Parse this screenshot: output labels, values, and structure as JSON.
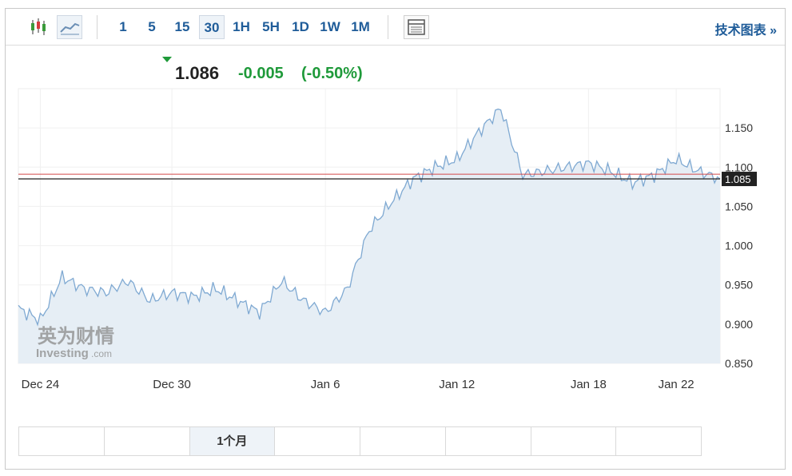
{
  "toolbar": {
    "icons": [
      "candlestick-icon",
      "area-chart-icon",
      "table-icon"
    ],
    "timeframes": [
      "1",
      "5",
      "15",
      "30",
      "1H",
      "5H",
      "1D",
      "1W",
      "1M"
    ],
    "active_timeframe": "30",
    "tech_chart_link": "技术图表 »"
  },
  "quote": {
    "direction": "down",
    "price": "1.086",
    "change": "-0.005",
    "change_pct": "(-0.50%)",
    "color": "#1f9a3a"
  },
  "watermark": {
    "cn": "英为财情",
    "en": "Investing",
    "suffix": ".com"
  },
  "range_tabs": [
    "",
    "",
    "1个月",
    "",
    "",
    "",
    "",
    ""
  ],
  "active_range": "1个月",
  "chart_data": {
    "type": "area",
    "title": "",
    "xlabel": "",
    "ylabel": "",
    "x_ticks": [
      "Dec 24",
      "Dec 30",
      "Jan 6",
      "Jan 12",
      "Jan 18",
      "Jan 22"
    ],
    "y_ticks": [
      0.85,
      0.9,
      0.95,
      1.0,
      1.05,
      1.1,
      1.15
    ],
    "ylim": [
      0.85,
      1.2
    ],
    "y_axis_side": "right",
    "grid": true,
    "current_value": 1.085,
    "current_label": "1.085",
    "reference_value": 1.091,
    "line_color": "#7fa9d2",
    "fill_color": "#e6eef5",
    "reference_color": "#d44a4a",
    "series": [
      {
        "x": [
          "Dec 23",
          "Dec 24",
          "Dec 25",
          "Dec 26",
          "Dec 27",
          "Dec 28",
          "Dec 29",
          "Dec 30",
          "Dec 31",
          "Jan 1",
          "Jan 2",
          "Jan 3",
          "Jan 4",
          "Jan 5",
          "Jan 6",
          "Jan 7",
          "Jan 8",
          "Jan 9",
          "Jan 10",
          "Jan 11",
          "Jan 12",
          "Jan 13",
          "Jan 14",
          "Jan 15",
          "Jan 16",
          "Jan 17",
          "Jan 18",
          "Jan 19",
          "Jan 20",
          "Jan 21",
          "Jan 22",
          "Jan 23",
          "Jan 24"
        ],
        "values": [
          0.92,
          0.905,
          0.96,
          0.945,
          0.94,
          0.955,
          0.93,
          0.94,
          0.935,
          0.945,
          0.93,
          0.915,
          0.955,
          0.93,
          0.915,
          0.945,
          1.02,
          1.055,
          1.085,
          1.1,
          1.11,
          1.145,
          1.175,
          1.09,
          1.095,
          1.1,
          1.105,
          1.095,
          1.08,
          1.09,
          1.11,
          1.095,
          1.085
        ]
      }
    ]
  }
}
